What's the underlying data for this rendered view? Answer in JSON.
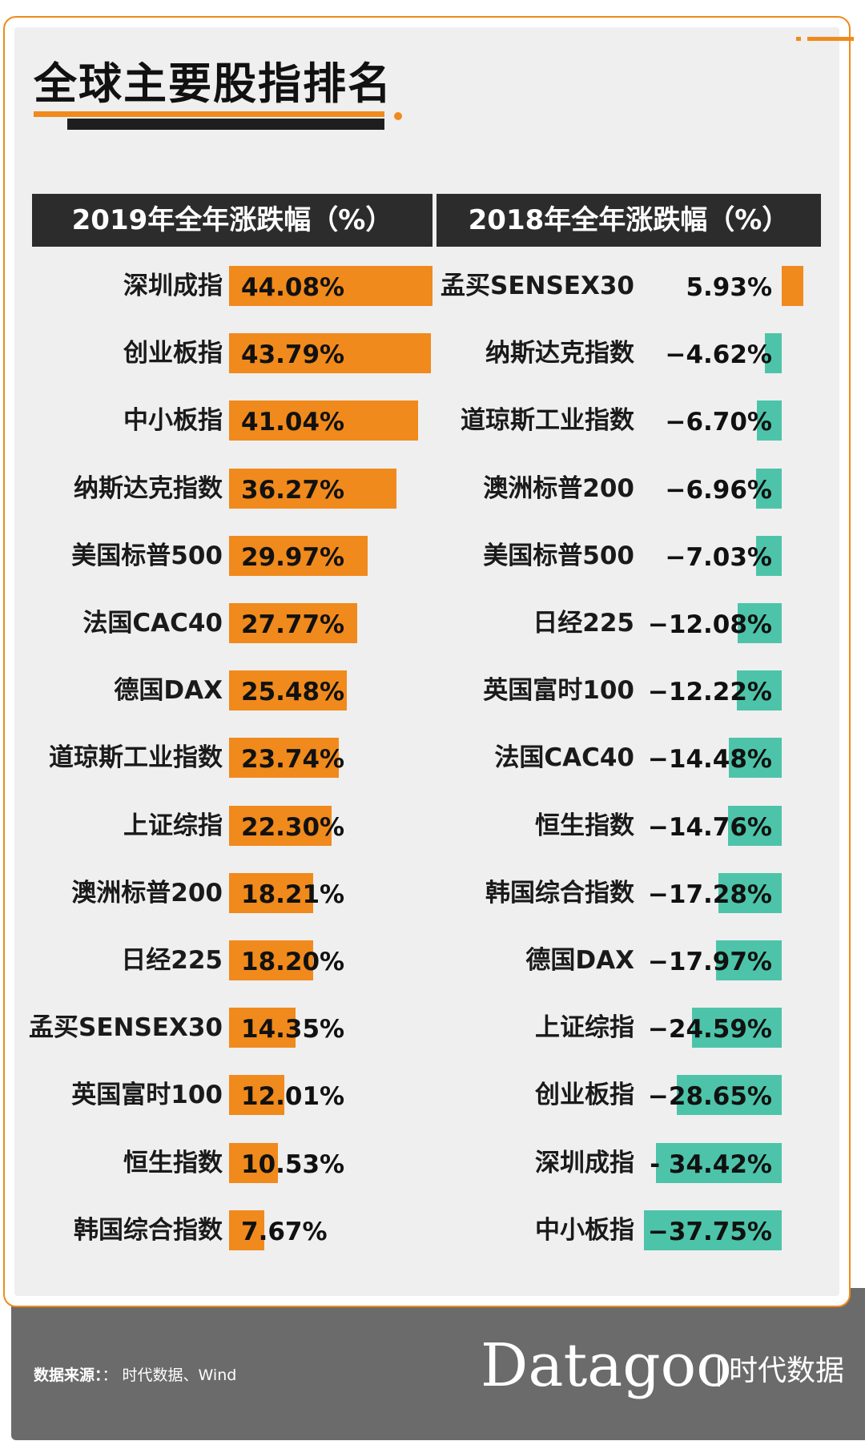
{
  "title": "全球主要股指排名",
  "footer": {
    "source_label": "数据来源：",
    "source_text": "：  时代数据、Wind",
    "brand": "Datagoo",
    "brand_cn": "时代数据"
  },
  "colors": {
    "accent_orange": "#f08a1c",
    "positive_bar": "#f08a1c",
    "negative_bar": "#4dc4a9",
    "header_bg": "#2c2c2c"
  },
  "chart_data": [
    {
      "type": "bar",
      "orientation": "horizontal",
      "title": "2019年全年涨跌幅（%）",
      "categories": [
        "深圳成指",
        "创业板指",
        "中小板指",
        "纳斯达克指数",
        "美国标普500",
        "法国CAC40",
        "德国DAX",
        "道琼斯工业指数",
        "上证综指",
        "澳洲标普200",
        "日经225",
        "孟买SENSEX30",
        "英国富时100",
        "恒生指数",
        "韩国综合指数"
      ],
      "values": [
        44.08,
        43.79,
        41.04,
        36.27,
        29.97,
        27.77,
        25.48,
        23.74,
        22.3,
        18.21,
        18.2,
        14.35,
        12.01,
        10.53,
        7.67
      ],
      "labels": [
        "44.08%",
        "43.79%",
        "41.04%",
        "36.27%",
        "29.97%",
        "27.77%",
        "25.48%",
        "23.74%",
        "22.30%",
        "18.21%",
        "18.20%",
        "14.35%",
        "12.01%",
        "10.53%",
        "7.67%"
      ],
      "bar_color": "#f08a1c",
      "grid": false
    },
    {
      "type": "bar",
      "orientation": "horizontal",
      "title": "2018年全年涨跌幅（%）",
      "categories": [
        "孟买SENSEX30",
        "纳斯达克指数",
        "道琼斯工业指数",
        "澳洲标普200",
        "美国标普500",
        "日经225",
        "英国富时100",
        "法国CAC40",
        "恒生指数",
        "韩国综合指数",
        "德国DAX",
        "上证综指",
        "创业板指",
        "深圳成指",
        "中小板指"
      ],
      "values": [
        5.93,
        -4.62,
        -6.7,
        -6.96,
        -7.03,
        -12.08,
        -12.22,
        -14.48,
        -14.76,
        -17.28,
        -17.97,
        -24.59,
        -28.65,
        -34.42,
        -37.75
      ],
      "labels": [
        "5.93%",
        "−4.62%",
        "−6.70%",
        "−6.96%",
        "−7.03%",
        "−12.08%",
        "−12.22%",
        "−14.48%",
        "−14.76%",
        "−17.28%",
        "−17.97%",
        "−24.59%",
        "−28.65%",
        "- 34.42%",
        "−37.75%"
      ],
      "positive_color": "#f08a1c",
      "negative_color": "#4dc4a9",
      "grid": false
    }
  ]
}
